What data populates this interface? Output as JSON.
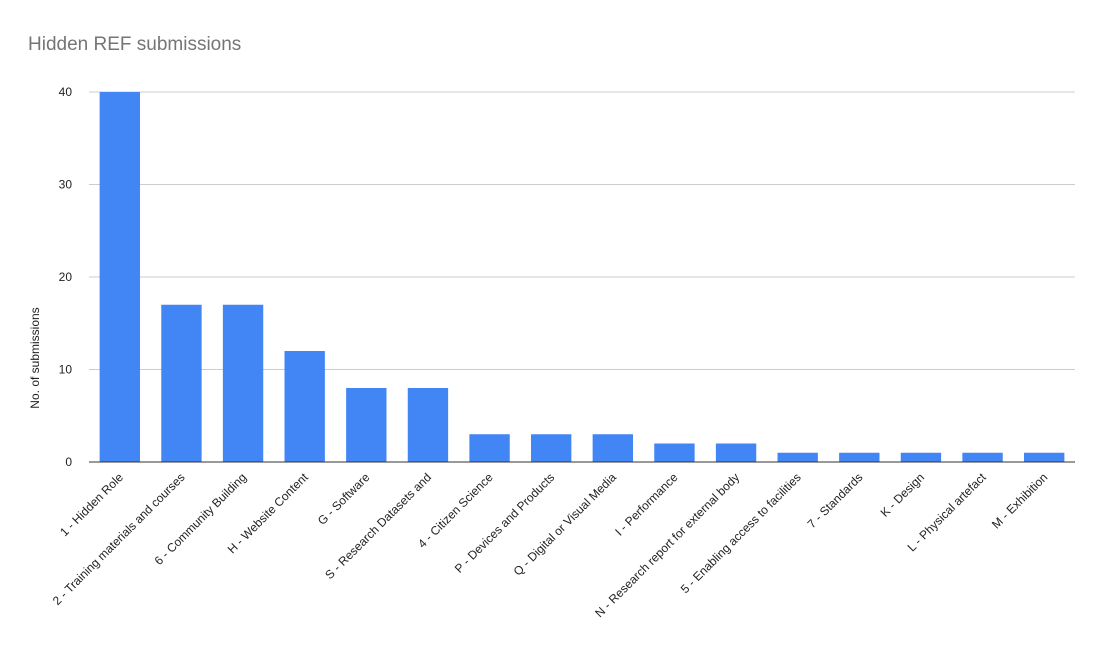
{
  "chart_data": {
    "type": "bar",
    "title": "Hidden REF submissions",
    "xlabel": "",
    "ylabel": "No. of submissions",
    "ylim": [
      0,
      40
    ],
    "yticks": [
      0,
      10,
      20,
      30,
      40
    ],
    "grid": true,
    "legend": "none",
    "bar_color": "#4285f4",
    "categories": [
      "1 - Hidden Role",
      "2 - Training materials and courses",
      "6 - Community Building",
      "H - Website Content",
      "G - Software",
      "S - Research Datasets and",
      "4 - Citizen Science",
      "P - Devices and Products",
      "Q - Digital or Visual Media",
      "I - Performance",
      "N - Research report for external body",
      "5 - Enabling access to facilities",
      "7 - Standards",
      "K - Design",
      "L - Physical artefact",
      "M - Exhibition"
    ],
    "values": [
      40,
      17,
      17,
      12,
      8,
      8,
      3,
      3,
      3,
      2,
      2,
      1,
      1,
      1,
      1,
      1
    ]
  }
}
